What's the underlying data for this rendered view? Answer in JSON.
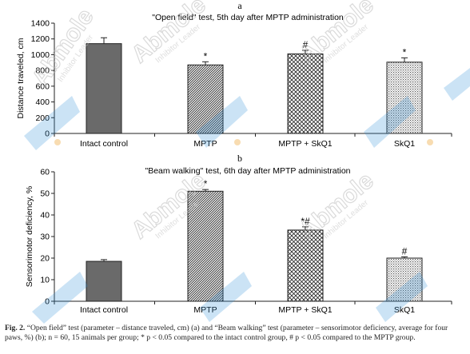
{
  "figure": {
    "caption_label": "Fig. 2.",
    "caption_text": "“Open field” test (parameter – distance traveled, cm) (a) and “Beam walking” test (parameter – sensorimotor deficiency, average for four paws, %) (b); n = 60, 15 animals per group; * p < 0.05 compared to the intact control group, # p < 0.05 compared to the MPTP group.",
    "watermark": {
      "brand": "Abmole",
      "tagline": "Inhibitor Leader",
      "color": "#2f8fd8"
    }
  },
  "chart_data": [
    {
      "type": "bar",
      "panel": "a",
      "title": "\"Open field\" test, 5th day after MPTP administration",
      "xlabel": "",
      "ylabel": "Distance traveled, cm",
      "ylim": [
        0,
        1400
      ],
      "yticks": [
        0,
        200,
        400,
        600,
        800,
        1000,
        1200,
        1400
      ],
      "categories": [
        "Intact control",
        "MPTP",
        "MPTP + SkQ1",
        "SkQ1"
      ],
      "values": [
        1140,
        870,
        1010,
        905
      ],
      "errors": [
        75,
        40,
        45,
        55
      ],
      "significance": [
        "",
        "*",
        "#",
        "*"
      ],
      "patterns": [
        "solid-dark",
        "diagonal",
        "crosshatch",
        "dotted"
      ],
      "grid": false
    },
    {
      "type": "bar",
      "panel": "b",
      "title": "\"Beam walking\" test, 6th day after MPTP administration",
      "xlabel": "",
      "ylabel": "Sensorimotor deficiency, %",
      "ylim": [
        0,
        60
      ],
      "yticks": [
        0,
        10,
        20,
        30,
        40,
        50,
        60
      ],
      "categories": [
        "Intact control",
        "MPTP",
        "MPTP + SkQ1",
        "SkQ1"
      ],
      "values": [
        18.5,
        51,
        33,
        20
      ],
      "errors": [
        0.8,
        0.8,
        1.5,
        0.6
      ],
      "significance": [
        "",
        "*",
        "*#",
        "#"
      ],
      "patterns": [
        "solid-dark",
        "diagonal",
        "crosshatch",
        "dotted"
      ],
      "grid": false
    }
  ]
}
